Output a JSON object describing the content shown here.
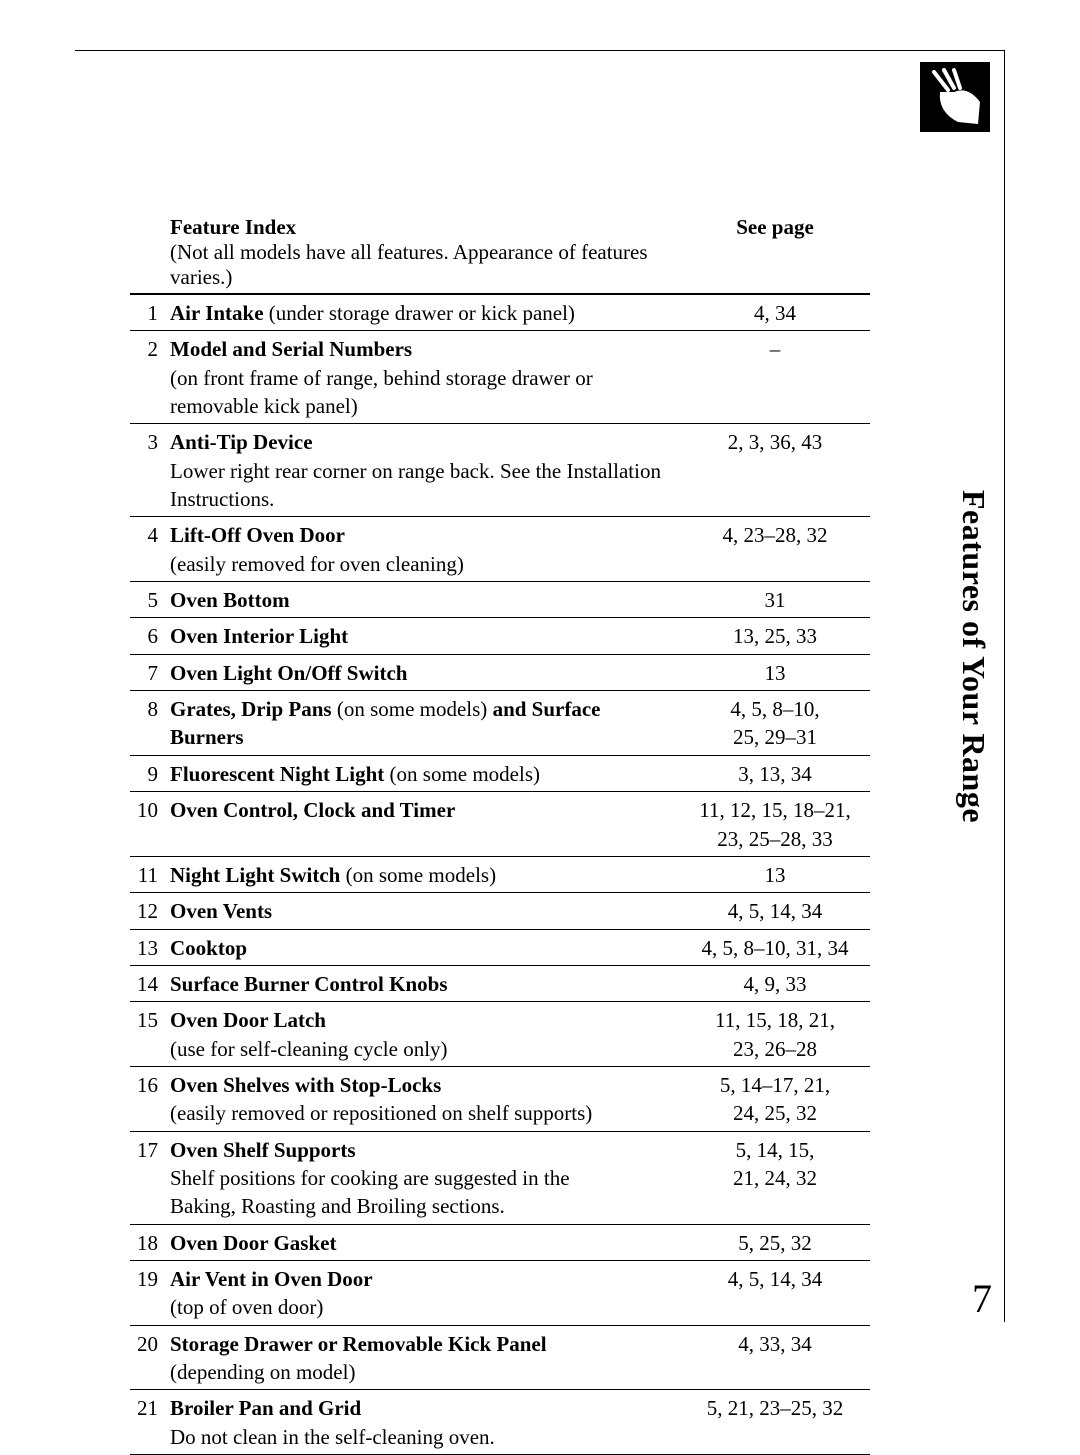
{
  "side_title": "Features of Your Range",
  "page_number": "7",
  "header": {
    "feature_label": "Feature Index",
    "feature_sub": "(Not all models have all features. Appearance of features varies.)",
    "page_label": "See page"
  },
  "rows": [
    {
      "n": "1",
      "title": "Air Intake",
      "title_suffix": " (under storage drawer or kick panel)",
      "sub": "",
      "page": "4, 34"
    },
    {
      "n": "2",
      "title": "Model and Serial Numbers",
      "title_suffix": "",
      "sub": "(on front frame of range, behind storage drawer or removable kick panel)",
      "page": "–"
    },
    {
      "n": "3",
      "title": "Anti-Tip Device",
      "title_suffix": "",
      "sub": "Lower right rear corner on range back. See the Installation Instructions.",
      "page": "2, 3, 36, 43"
    },
    {
      "n": "4",
      "title": "Lift-Off Oven Door",
      "title_suffix": "",
      "sub": "(easily removed for oven cleaning)",
      "page": "4, 23–28, 32"
    },
    {
      "n": "5",
      "title": "Oven Bottom",
      "title_suffix": "",
      "sub": "",
      "page": "31"
    },
    {
      "n": "6",
      "title": "Oven Interior Light",
      "title_suffix": "",
      "sub": "",
      "page": "13, 25, 33"
    },
    {
      "n": "7",
      "title": "Oven Light On/Off Switch",
      "title_suffix": "",
      "sub": "",
      "page": "13"
    },
    {
      "n": "8",
      "title": "Grates, Drip Pans",
      "title_suffix": " (on some models)",
      "title2": " and Surface Burners",
      "sub": "",
      "page": "4, 5, 8–10,",
      "page2": "25, 29–31"
    },
    {
      "n": "9",
      "title": "Fluorescent Night Light",
      "title_suffix": " (on some models)",
      "sub": "",
      "page": "3, 13, 34"
    },
    {
      "n": "10",
      "title": "Oven Control, Clock and Timer",
      "title_suffix": "",
      "sub": "",
      "page": "11, 12, 15, 18–21,",
      "page2": "23, 25–28, 33"
    },
    {
      "n": "11",
      "title": "Night Light Switch",
      "title_suffix": " (on some models)",
      "sub": "",
      "page": "13"
    },
    {
      "n": "12",
      "title": "Oven Vents",
      "title_suffix": "",
      "sub": "",
      "page": "4, 5, 14, 34"
    },
    {
      "n": "13",
      "title": "Cooktop",
      "title_suffix": "",
      "sub": "",
      "page": "4, 5, 8–10, 31, 34"
    },
    {
      "n": "14",
      "title": "Surface Burner Control Knobs",
      "title_suffix": "",
      "sub": "",
      "page": "4, 9, 33"
    },
    {
      "n": "15",
      "title": "Oven Door Latch",
      "title_suffix": "",
      "sub": "(use for self-cleaning cycle only)",
      "page": "11, 15, 18, 21,",
      "page2": "23, 26–28"
    },
    {
      "n": "16",
      "title": "Oven Shelves with Stop-Locks",
      "title_suffix": "",
      "sub": "(easily removed or repositioned on shelf supports)",
      "page": "5, 14–17, 21,",
      "page2": "24, 25, 32"
    },
    {
      "n": "17",
      "title": "Oven Shelf Supports",
      "title_suffix": "",
      "sub": "Shelf positions for cooking are suggested in the",
      "sub2": "Baking, Roasting and Broiling sections.",
      "page": "5, 14, 15,",
      "page2": "21, 24, 32"
    },
    {
      "n": "18",
      "title": "Oven Door Gasket",
      "title_suffix": "",
      "sub": "",
      "page": "5, 25, 32"
    },
    {
      "n": "19",
      "title": "Air Vent in Oven Door",
      "title_suffix": "",
      "sub": "(top of oven door)",
      "page": "4, 5, 14, 34"
    },
    {
      "n": "20",
      "title": "Storage Drawer or Removable Kick Panel",
      "title_suffix": "",
      "sub": "(depending on model)",
      "page": "4, 33, 34"
    },
    {
      "n": "21",
      "title": "Broiler Pan and Grid",
      "title_suffix": "",
      "sub": "Do not clean in the self-cleaning oven.",
      "page": "5, 21, 23–25, 32"
    }
  ],
  "colors": {
    "text": "#000000",
    "bg": "#ffffff",
    "rule": "#000000"
  },
  "fonts": {
    "family": "Times New Roman",
    "body_pt": 21,
    "side_pt": 32,
    "pagenum_pt": 40
  }
}
